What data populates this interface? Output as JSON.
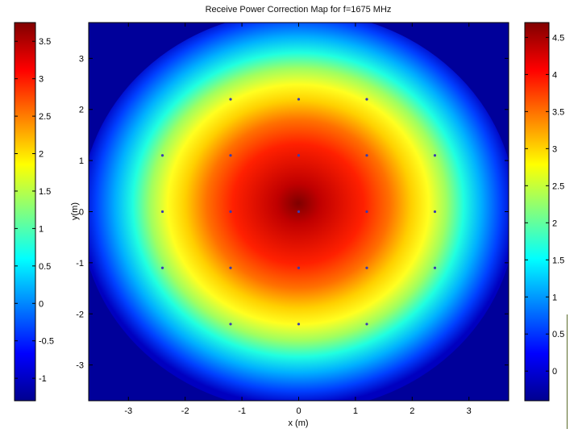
{
  "chart_data": {
    "type": "heatmap",
    "title": "Receive Power Correction Map for f=1675 MHz",
    "xlabel": "x (m)",
    "ylabel": "y(m)",
    "xlim": [
      -3.7,
      3.7
    ],
    "ylim": [
      -3.7,
      3.7
    ],
    "x_ticks": [
      -3,
      -2,
      -1,
      0,
      1,
      2,
      3
    ],
    "y_ticks": [
      -3,
      -2,
      -1,
      0,
      1,
      2,
      3
    ],
    "peak_value": 4.7,
    "peak_location": [
      0,
      0
    ],
    "colorscale": "jet",
    "sample_points": {
      "x": [
        -2.4,
        -1.2,
        0,
        1.2,
        2.4
      ],
      "y": [
        -2.2,
        -1.1,
        0,
        1.1,
        2.2
      ]
    },
    "colorbars": [
      {
        "side": "left",
        "range": [
          -1.3,
          3.75
        ],
        "ticks": [
          "-1",
          "-0.5",
          "0",
          "0.5",
          "1",
          "1.5",
          "2",
          "2.5",
          "3",
          "3.5"
        ]
      },
      {
        "side": "right",
        "range": [
          -0.4,
          4.7
        ],
        "ticks": [
          "0",
          "0.5",
          "1",
          "1.5",
          "2",
          "2.5",
          "3",
          "3.5",
          "4",
          "4.5"
        ]
      }
    ]
  }
}
